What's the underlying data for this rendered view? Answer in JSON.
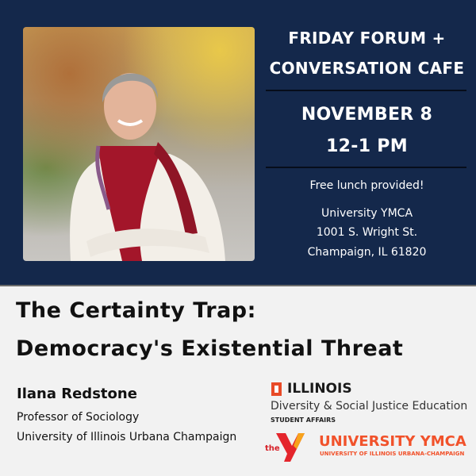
{
  "event": {
    "series": "FRIDAY FORUM +",
    "series_line2": "CONVERSATION CAFE",
    "date": "NOVEMBER 8",
    "time": "12-1 PM",
    "lunch": "Free lunch provided!",
    "venue": "University YMCA",
    "address": "1001 S. Wright St.",
    "city": "Champaign, IL 61820"
  },
  "talk": {
    "title_line1": "The Certainty Trap:",
    "title_line2": "Democracy's Existential Threat",
    "speaker": "Ilana Redstone",
    "role": "Professor of Sociology",
    "affiliation": "University of Illinois Urbana Champaign"
  },
  "sponsors": {
    "illinois": "ILLINOIS",
    "dsje": "Diversity & Social Justice Education",
    "student_affairs": "STUDENT AFFAIRS",
    "ymca_the": "the",
    "ymca": "UNIVERSITY YMCA",
    "ymca_sub": "UNIVERSITY OF ILLINOIS URBANA-CHAMPAIGN"
  },
  "colors": {
    "navy": "#14284b",
    "illinois_orange": "#e84a27",
    "ymca_orange": "#f1522b"
  }
}
